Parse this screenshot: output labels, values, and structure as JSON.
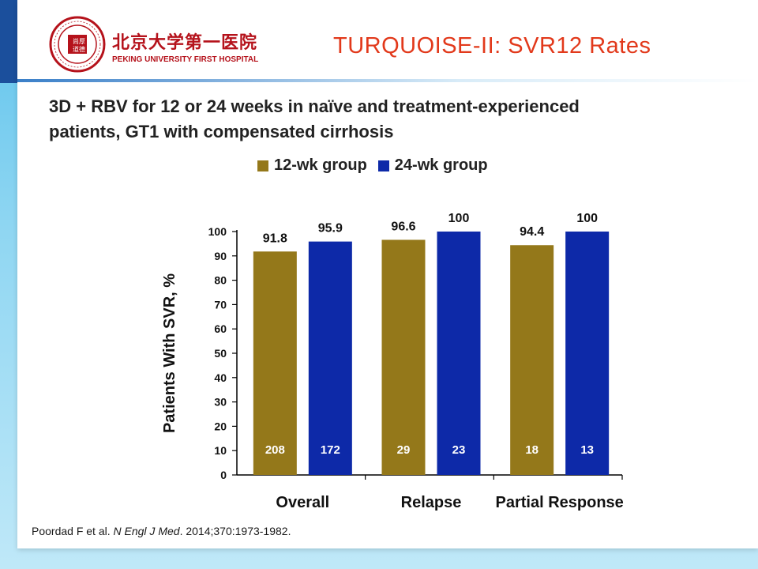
{
  "header": {
    "logo_cn": "北京大学第一医院",
    "logo_en": "PEKING UNIVERSITY FIRST HOSPITAL",
    "logo_seal": "尚厚道德",
    "title": "TURQUOISE-II: SVR12 Rates"
  },
  "subtitle_line1": "3D + RBV for 12 or 24 weeks in naïve and treatment-experienced",
  "subtitle_line2": "patients, GT1 with compensated cirrhosis",
  "citation": {
    "authors": "Poordad F et al. ",
    "journal": "N Engl J Med",
    "rest": ". 2014;370:1973-1982."
  },
  "colors": {
    "group12": "#94781a",
    "group24": "#0d29a8",
    "title": "#e2391b",
    "logo": "#b5121b"
  },
  "chart_data": {
    "type": "bar",
    "title": "",
    "ylabel": "Patients With SVR, %",
    "xlabel": "",
    "ylim": [
      0,
      100
    ],
    "yticks": [
      0,
      10,
      20,
      30,
      40,
      50,
      60,
      70,
      80,
      90,
      100
    ],
    "categories": [
      "Overall",
      "Relapse",
      "Partial Response"
    ],
    "legend_position": "top",
    "grid": false,
    "series": [
      {
        "name": "12-wk group",
        "values": [
          91.8,
          96.6,
          94.4
        ],
        "value_labels": [
          "91.8",
          "96.6",
          "94.4"
        ],
        "n": [
          "208",
          "29",
          "18"
        ]
      },
      {
        "name": "24-wk group",
        "values": [
          95.9,
          100,
          100
        ],
        "value_labels": [
          "95.9",
          "100",
          "100"
        ],
        "n": [
          "172",
          "23",
          "13"
        ]
      }
    ]
  }
}
